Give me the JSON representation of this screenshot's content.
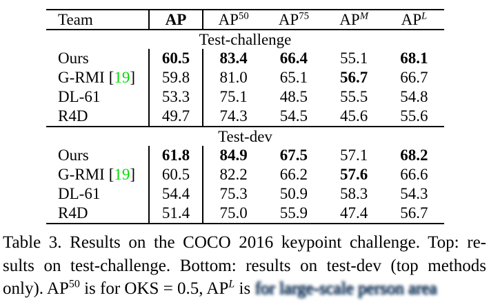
{
  "colors": {
    "citation_green": "#00dc00",
    "text": "#000000",
    "rule": "#000000",
    "blurred_text_tint": "#24406e"
  },
  "table": {
    "header": {
      "team": "Team",
      "ap": "AP",
      "col2_base": "AP",
      "col2_sup": "50",
      "col3_base": "AP",
      "col3_sup": "75",
      "col4_base": "AP",
      "col4_sup": "M",
      "col5_base": "AP",
      "col5_sup": "L"
    },
    "symbols": {
      "cite_open": "[",
      "cite_close": "]"
    },
    "sections": [
      {
        "label": "Test-challenge",
        "rows": [
          {
            "team": "Ours",
            "ap": "60.5",
            "v1": "83.4",
            "v2": "66.4",
            "v3": "55.1",
            "v4": "68.1"
          },
          {
            "team": "G-RMI",
            "cite": "19",
            "ap": "59.8",
            "v1": "81.0",
            "v2": "65.1",
            "v3": "56.7",
            "v4": "66.7"
          },
          {
            "team": "DL-61",
            "ap": "53.3",
            "v1": "75.1",
            "v2": "48.5",
            "v3": "55.5",
            "v4": "54.8"
          },
          {
            "team": "R4D",
            "ap": "49.7",
            "v1": "74.3",
            "v2": "54.5",
            "v3": "45.6",
            "v4": "55.6"
          }
        ]
      },
      {
        "label": "Test-dev",
        "rows": [
          {
            "team": "Ours",
            "ap": "61.8",
            "v1": "84.9",
            "v2": "67.5",
            "v3": "57.1",
            "v4": "68.2"
          },
          {
            "team": "G-RMI",
            "cite": "19",
            "ap": "60.5",
            "v1": "82.2",
            "v2": "66.2",
            "v3": "57.6",
            "v4": "66.6"
          },
          {
            "team": "DL-61",
            "ap": "54.4",
            "v1": "75.3",
            "v2": "50.9",
            "v3": "58.3",
            "v4": "54.3"
          },
          {
            "team": "R4D",
            "ap": "51.4",
            "v1": "75.0",
            "v2": "55.9",
            "v3": "47.4",
            "v4": "56.7"
          }
        ]
      }
    ]
  },
  "caption": {
    "line1": "Table 3. Results on the COCO 2016 keypoint challenge. Top: re-",
    "line2": "sults on test-challenge. Bottom: results on test-dev (top methods",
    "line3_pre": "only). AP",
    "line3_sup1": "50",
    "line3_mid": " is for OKS = 0.5, AP",
    "line3_sup2": "L",
    "line3_post": " is ",
    "line3_blurred": "for large-scale person area"
  }
}
